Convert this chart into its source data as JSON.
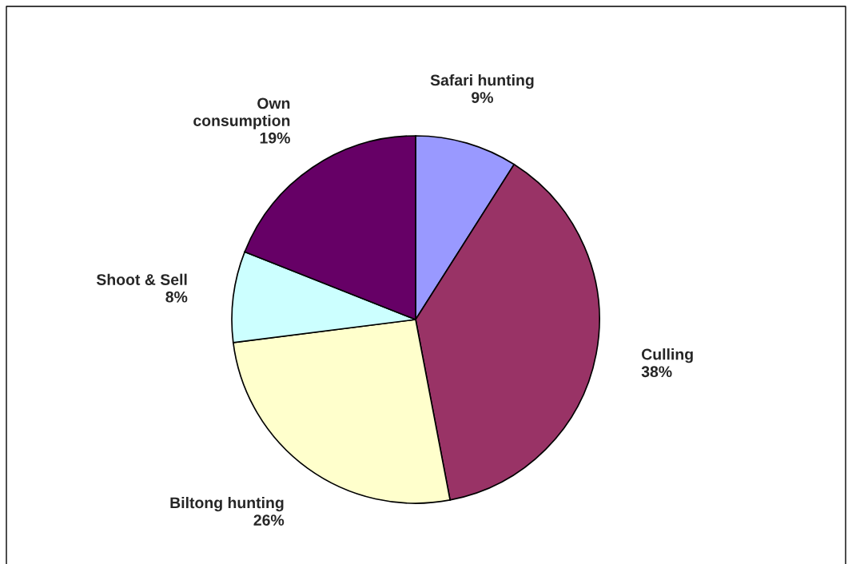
{
  "chart_data": {
    "type": "pie",
    "categories": [
      "Safari hunting",
      "Culling",
      "Biltong hunting",
      "Shoot & Sell",
      "Own\nconsumption"
    ],
    "values": [
      9,
      38,
      26,
      8,
      19
    ],
    "value_labels": [
      "9%",
      "38%",
      "26%",
      "8%",
      "19%"
    ],
    "colors": [
      "#9999ff",
      "#993366",
      "#ffffcc",
      "#ccffff",
      "#660066"
    ],
    "legend": false
  }
}
